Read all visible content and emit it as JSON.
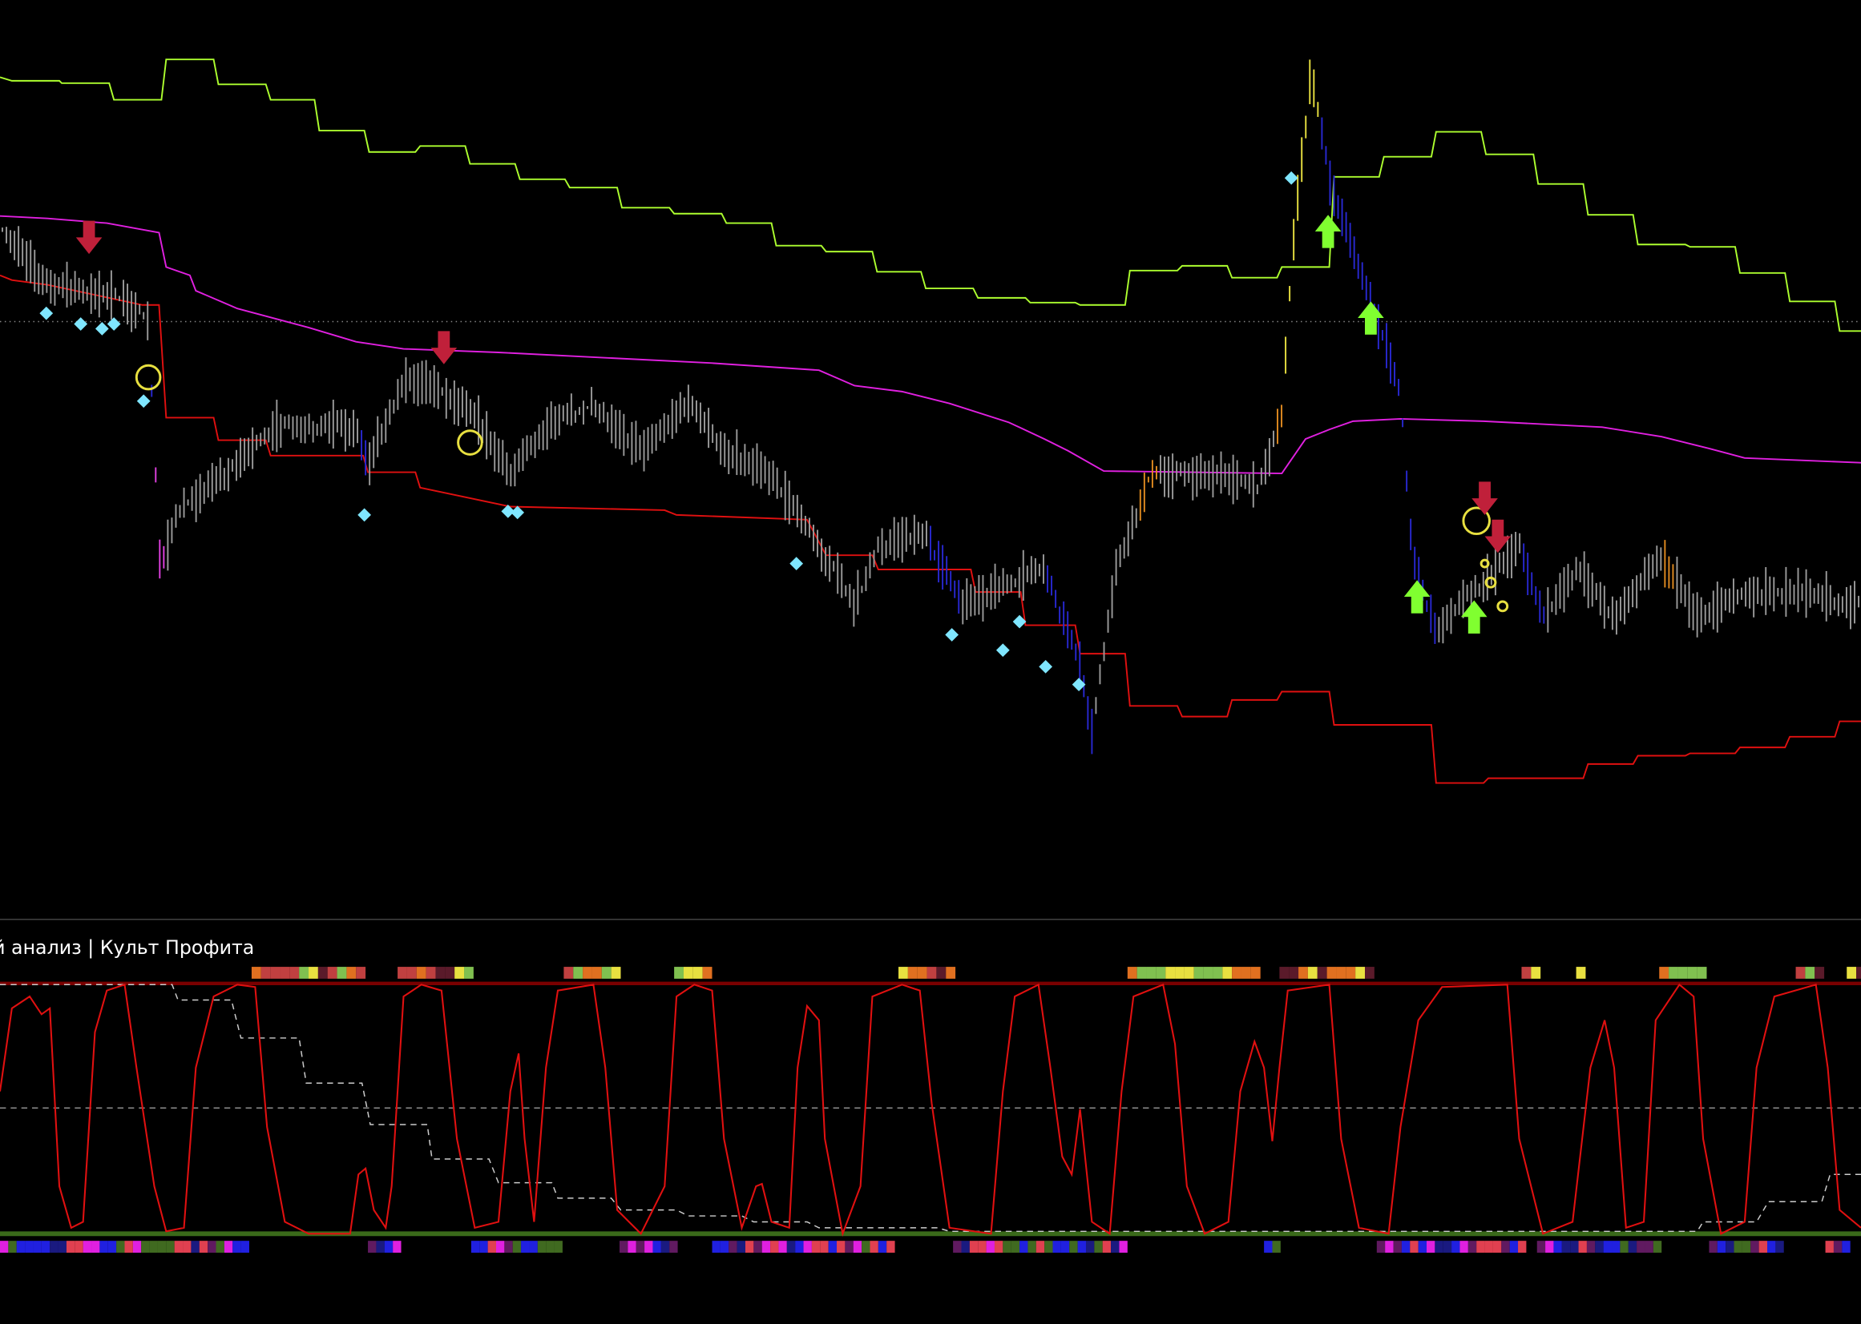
{
  "indicator_label": "й анализ | Культ Профита"
}
